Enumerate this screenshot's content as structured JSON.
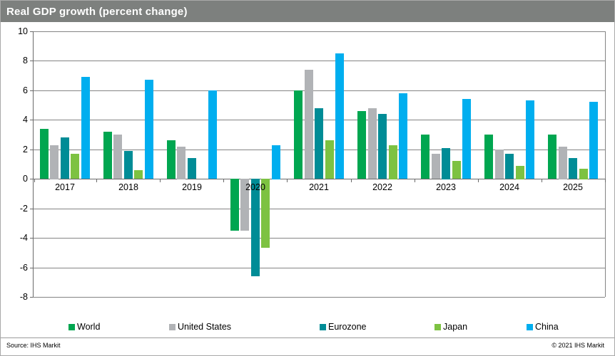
{
  "header": {
    "title": "Real GDP growth (percent change)"
  },
  "colors": {
    "title_bar_bg": "#7d807e",
    "grid_line": "#848484",
    "axis_line": "#6a6a6a",
    "frame_border": "#a9a9a9"
  },
  "footer": {
    "source": "Source: IHS Markit",
    "copyright": "© 2021  IHS Markit"
  },
  "chart_data": {
    "type": "bar",
    "title": "Real GDP growth (percent change)",
    "categories": [
      "2017",
      "2018",
      "2019",
      "2020",
      "2021",
      "2022",
      "2023",
      "2024",
      "2025"
    ],
    "series": [
      {
        "name": "World",
        "color": "#00a650",
        "values": [
          3.4,
          3.2,
          2.6,
          -3.5,
          6.0,
          4.6,
          3.0,
          3.0,
          3.0
        ]
      },
      {
        "name": "United States",
        "color": "#b1b3b6",
        "values": [
          2.3,
          3.0,
          2.2,
          -3.5,
          7.4,
          4.8,
          1.7,
          2.0,
          2.2
        ]
      },
      {
        "name": "Eurozone",
        "color": "#008c96",
        "values": [
          2.8,
          1.9,
          1.4,
          -6.6,
          4.8,
          4.4,
          2.1,
          1.7,
          1.4
        ]
      },
      {
        "name": "Japan",
        "color": "#7dc242",
        "values": [
          1.7,
          0.6,
          0.0,
          -4.7,
          2.6,
          2.3,
          1.2,
          0.9,
          0.7
        ]
      },
      {
        "name": "China",
        "color": "#00aeef",
        "values": [
          6.9,
          6.7,
          6.0,
          2.3,
          8.5,
          5.8,
          5.4,
          5.3,
          5.2
        ]
      }
    ],
    "ylim": [
      -8,
      10
    ],
    "ytick_step": 2,
    "ytick_labels": [
      "10",
      "8",
      "6",
      "4",
      "2",
      "0",
      "-2",
      "-4",
      "-6",
      "-8"
    ],
    "grid": "horizontal",
    "legend_position": "bottom",
    "xlabel": "",
    "ylabel": ""
  }
}
